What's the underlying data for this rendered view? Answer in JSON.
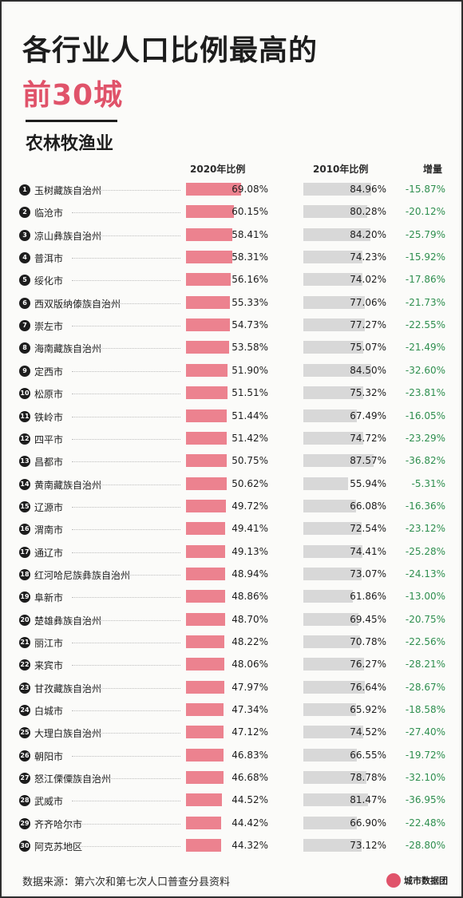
{
  "title_line1": "各行业人口比例最高的",
  "title_line2": "前30城",
  "subtitle": "农林牧渔业",
  "columns": {
    "c2020": "2020年比例",
    "c2010": "2010年比例",
    "delta": "增量"
  },
  "footer": {
    "source": "数据来源：第六次和第七次人口普查分县资料",
    "brand": "城市数据团"
  },
  "colors": {
    "bar2020": "#ec828f",
    "bar2010": "#d8d8d8",
    "accent": "#e0536a",
    "increase": "#2f8f4f"
  },
  "chart_data": {
    "type": "bar",
    "title": "各行业人口比例最高的前30城",
    "subtitle": "农林牧渔业",
    "ylim": [
      0,
      100
    ],
    "categories": [
      "玉树藏族自治州",
      "临沧市",
      "凉山彝族自治州",
      "普洱市",
      "绥化市",
      "西双版纳傣族自治州",
      "崇左市",
      "海南藏族自治州",
      "定西市",
      "松原市",
      "铁岭市",
      "四平市",
      "昌都市",
      "黄南藏族自治州",
      "辽源市",
      "渭南市",
      "通辽市",
      "红河哈尼族彝族自治州",
      "阜新市",
      "楚雄彝族自治州",
      "丽江市",
      "来宾市",
      "甘孜藏族自治州",
      "白城市",
      "大理白族自治州",
      "朝阳市",
      "怒江傈僳族自治州",
      "武威市",
      "齐齐哈尔市",
      "阿克苏地区"
    ],
    "series": [
      {
        "name": "2020年比例",
        "values": [
          69.08,
          60.15,
          58.41,
          58.31,
          56.16,
          55.33,
          54.73,
          53.58,
          51.9,
          51.51,
          51.44,
          51.42,
          50.75,
          50.62,
          49.72,
          49.41,
          49.13,
          48.94,
          48.86,
          48.7,
          48.22,
          48.06,
          47.97,
          47.34,
          47.12,
          46.83,
          46.68,
          44.52,
          44.42,
          44.32
        ],
        "labels": [
          "69.08%",
          "60.15%",
          "58.41%",
          "58.31%",
          "56.16%",
          "55.33%",
          "54.73%",
          "53.58%",
          "51.90%",
          "51.51%",
          "51.44%",
          "51.42%",
          "50.75%",
          "50.62%",
          "49.72%",
          "49.41%",
          "49.13%",
          "48.94%",
          "48.86%",
          "48.70%",
          "48.22%",
          "48.06%",
          "47.97%",
          "47.34%",
          "47.12%",
          "46.83%",
          "46.68%",
          "44.52%",
          "44.42%",
          "44.32%"
        ]
      },
      {
        "name": "2010年比例",
        "values": [
          84.96,
          80.28,
          84.2,
          74.23,
          74.02,
          77.06,
          77.27,
          75.07,
          84.5,
          75.32,
          67.49,
          74.72,
          87.57,
          55.94,
          66.08,
          72.54,
          74.41,
          73.07,
          61.86,
          69.45,
          70.78,
          76.27,
          76.64,
          65.92,
          74.52,
          66.55,
          78.78,
          81.47,
          66.9,
          73.12
        ],
        "labels": [
          "84.96%",
          "80.28%",
          "84.20%",
          "74.23%",
          "74.02%",
          "77.06%",
          "77.27%",
          "75.07%",
          "84.50%",
          "75.32%",
          "67.49%",
          "74.72%",
          "87.57%",
          "55.94%",
          "66.08%",
          "72.54%",
          "74.41%",
          "73.07%",
          "61.86%",
          "69.45%",
          "70.78%",
          "76.27%",
          "76.64%",
          "65.92%",
          "74.52%",
          "66.55%",
          "78.78%",
          "81.47%",
          "66.90%",
          "73.12%"
        ]
      },
      {
        "name": "增量",
        "labels": [
          "-15.87%",
          "-20.12%",
          "-25.79%",
          "-15.92%",
          "-17.86%",
          "-21.73%",
          "-22.55%",
          "-21.49%",
          "-32.60%",
          "-23.81%",
          "-16.05%",
          "-23.29%",
          "-36.82%",
          "-5.31%",
          "-16.36%",
          "-23.12%",
          "-25.28%",
          "-24.13%",
          "-13.00%",
          "-20.75%",
          "-22.56%",
          "-28.21%",
          "-28.67%",
          "-18.58%",
          "-27.40%",
          "-19.72%",
          "-32.10%",
          "-36.95%",
          "-22.48%",
          "-28.80%"
        ]
      }
    ]
  }
}
